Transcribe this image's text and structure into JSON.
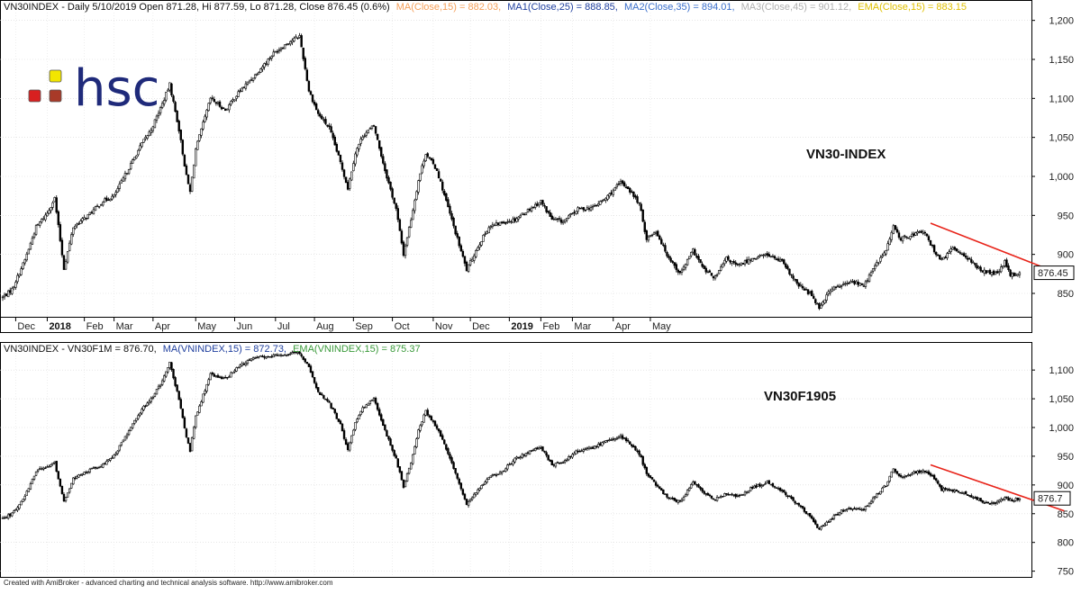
{
  "colors": {
    "ma15": "#f5a05a",
    "ma25": "#1f3f9e",
    "ma35": "#3a6fcc",
    "ma45": "#b0b0b0",
    "ema15": "#e0c000",
    "trend": "#e8241a",
    "candle": "#000000",
    "logo_red": "#d82020",
    "logo_yellow": "#f2e600",
    "logo_brown": "#a83a28",
    "logo_text": "#1f2a7a",
    "f_ma": "#1f3f9e",
    "f_ema": "#3a9a3a"
  },
  "logo": {
    "text": "hsc"
  },
  "panel1": {
    "header": {
      "prefix": "VN30INDEX - Daily 5/10/2019 Open 871.28, Hi 877.59, Lo 871.28, Close 876.45 (0.6%)",
      "ma15": "MA(Close,15) = 882.03,",
      "ma25": "MA1(Close,25) = 888.85,",
      "ma35": "MA2(Close,35) = 894.01,",
      "ma45": "MA3(Close,45) = 901.12,",
      "ema15": "EMA(Close,15) = 883.15"
    },
    "label": "VN30-INDEX",
    "last_value": "876.45"
  },
  "panel2": {
    "header": {
      "prefix": "VN30INDEX - VN30F1M = 876.70,",
      "ma": "MA(VNINDEX,15) = 872.73,",
      "ema": "EMA(VNINDEX,15) = 875.37"
    },
    "label": "VN30F1905",
    "last_value": "876.7"
  },
  "footer": "Created with AmiBroker - advanced charting and technical analysis software. http://www.amibroker.com",
  "chart_data": [
    {
      "type": "candlestick",
      "title": "VN30-INDEX",
      "ylim": [
        820,
        1210
      ],
      "yticks": [
        "850",
        "900",
        "950",
        "1,000",
        "1,050",
        "1,100",
        "1,150",
        "1,200"
      ],
      "months": [
        "Dec",
        "2018",
        "Feb",
        "Mar",
        "Apr",
        "May",
        "Jun",
        "Jul",
        "Aug",
        "Sep",
        "Oct",
        "Nov",
        "Dec",
        "2019",
        "Feb",
        "Mar",
        "Apr",
        "May"
      ],
      "month_index": [
        7,
        24,
        44,
        60,
        81,
        104,
        125,
        147,
        168,
        189,
        210,
        232,
        252,
        273,
        290,
        307,
        329,
        349
      ],
      "close_path": [
        [
          0,
          845
        ],
        [
          5,
          855
        ],
        [
          12,
          893
        ],
        [
          18,
          935
        ],
        [
          24,
          953
        ],
        [
          28,
          972
        ],
        [
          33,
          882
        ],
        [
          38,
          935
        ],
        [
          46,
          950
        ],
        [
          54,
          968
        ],
        [
          60,
          975
        ],
        [
          75,
          1042
        ],
        [
          80,
          1060
        ],
        [
          86,
          1093
        ],
        [
          90,
          1118
        ],
        [
          95,
          1060
        ],
        [
          99,
          1000
        ],
        [
          101,
          980
        ],
        [
          104,
          1035
        ],
        [
          112,
          1100
        ],
        [
          120,
          1085
        ],
        [
          128,
          1110
        ],
        [
          136,
          1130
        ],
        [
          146,
          1158
        ],
        [
          154,
          1172
        ],
        [
          160,
          1180
        ],
        [
          165,
          1110
        ],
        [
          170,
          1080
        ],
        [
          176,
          1062
        ],
        [
          182,
          1018
        ],
        [
          186,
          985
        ],
        [
          190,
          1030
        ],
        [
          194,
          1052
        ],
        [
          200,
          1065
        ],
        [
          206,
          1008
        ],
        [
          212,
          958
        ],
        [
          216,
          900
        ],
        [
          220,
          945
        ],
        [
          224,
          995
        ],
        [
          228,
          1030
        ],
        [
          234,
          1008
        ],
        [
          240,
          960
        ],
        [
          246,
          912
        ],
        [
          250,
          880
        ],
        [
          256,
          910
        ],
        [
          262,
          935
        ],
        [
          268,
          940
        ],
        [
          276,
          945
        ],
        [
          282,
          955
        ],
        [
          290,
          968
        ],
        [
          296,
          945
        ],
        [
          302,
          942
        ],
        [
          310,
          958
        ],
        [
          318,
          960
        ],
        [
          325,
          972
        ],
        [
          333,
          992
        ],
        [
          337,
          985
        ],
        [
          343,
          965
        ],
        [
          347,
          920
        ],
        [
          352,
          930
        ],
        [
          358,
          900
        ],
        [
          365,
          875
        ],
        [
          372,
          905
        ],
        [
          378,
          880
        ],
        [
          384,
          870
        ],
        [
          390,
          895
        ],
        [
          396,
          885
        ],
        [
          404,
          895
        ],
        [
          412,
          900
        ],
        [
          420,
          890
        ],
        [
          428,
          862
        ],
        [
          436,
          848
        ],
        [
          440,
          832
        ],
        [
          446,
          855
        ],
        [
          452,
          860
        ],
        [
          458,
          865
        ],
        [
          464,
          860
        ],
        [
          470,
          885
        ],
        [
          476,
          905
        ],
        [
          480,
          935
        ],
        [
          484,
          920
        ],
        [
          490,
          925
        ],
        [
          496,
          930
        ],
        [
          502,
          905
        ],
        [
          506,
          892
        ],
        [
          512,
          908
        ],
        [
          518,
          900
        ],
        [
          524,
          885
        ],
        [
          530,
          877
        ],
        [
          536,
          875
        ],
        [
          540,
          890
        ],
        [
          543,
          873
        ],
        [
          548,
          876
        ]
      ],
      "trend_line": [
        [
          500,
          940
        ],
        [
          572,
          873
        ]
      ],
      "last": 876.45
    },
    {
      "type": "candlestick",
      "title": "VN30F1905",
      "ylim": [
        740,
        1130
      ],
      "yticks": [
        "750",
        "800",
        "850",
        "900",
        "950",
        "1,000",
        "1,050",
        "1,100"
      ],
      "close_path": [
        [
          0,
          842
        ],
        [
          5,
          850
        ],
        [
          12,
          880
        ],
        [
          18,
          925
        ],
        [
          24,
          930
        ],
        [
          28,
          940
        ],
        [
          33,
          870
        ],
        [
          38,
          910
        ],
        [
          46,
          925
        ],
        [
          54,
          935
        ],
        [
          60,
          950
        ],
        [
          75,
          1032
        ],
        [
          80,
          1050
        ],
        [
          86,
          1080
        ],
        [
          90,
          1112
        ],
        [
          95,
          1050
        ],
        [
          99,
          985
        ],
        [
          101,
          960
        ],
        [
          104,
          1020
        ],
        [
          112,
          1092
        ],
        [
          120,
          1085
        ],
        [
          128,
          1108
        ],
        [
          136,
          1122
        ],
        [
          146,
          1125
        ],
        [
          154,
          1128
        ],
        [
          160,
          1130
        ],
        [
          165,
          1105
        ],
        [
          170,
          1062
        ],
        [
          176,
          1042
        ],
        [
          182,
          1005
        ],
        [
          186,
          960
        ],
        [
          190,
          1010
        ],
        [
          194,
          1035
        ],
        [
          200,
          1050
        ],
        [
          206,
          995
        ],
        [
          212,
          945
        ],
        [
          216,
          897
        ],
        [
          220,
          940
        ],
        [
          224,
          995
        ],
        [
          228,
          1028
        ],
        [
          234,
          1000
        ],
        [
          240,
          955
        ],
        [
          246,
          902
        ],
        [
          250,
          865
        ],
        [
          256,
          890
        ],
        [
          262,
          915
        ],
        [
          268,
          920
        ],
        [
          276,
          945
        ],
        [
          282,
          955
        ],
        [
          290,
          965
        ],
        [
          296,
          935
        ],
        [
          302,
          940
        ],
        [
          310,
          960
        ],
        [
          318,
          965
        ],
        [
          325,
          975
        ],
        [
          333,
          985
        ],
        [
          337,
          975
        ],
        [
          343,
          955
        ],
        [
          347,
          920
        ],
        [
          352,
          900
        ],
        [
          358,
          880
        ],
        [
          365,
          870
        ],
        [
          372,
          905
        ],
        [
          378,
          885
        ],
        [
          384,
          875
        ],
        [
          390,
          885
        ],
        [
          396,
          880
        ],
        [
          404,
          895
        ],
        [
          412,
          905
        ],
        [
          420,
          890
        ],
        [
          428,
          868
        ],
        [
          436,
          842
        ],
        [
          440,
          822
        ],
        [
          446,
          840
        ],
        [
          452,
          855
        ],
        [
          458,
          860
        ],
        [
          464,
          858
        ],
        [
          470,
          880
        ],
        [
          476,
          900
        ],
        [
          480,
          928
        ],
        [
          484,
          915
        ],
        [
          490,
          920
        ],
        [
          496,
          925
        ],
        [
          502,
          912
        ],
        [
          506,
          892
        ],
        [
          512,
          890
        ],
        [
          518,
          885
        ],
        [
          524,
          878
        ],
        [
          530,
          868
        ],
        [
          536,
          870
        ],
        [
          540,
          880
        ],
        [
          543,
          873
        ],
        [
          548,
          876
        ]
      ],
      "trend_line": [
        [
          500,
          935
        ],
        [
          572,
          855
        ]
      ],
      "last": 876.7
    }
  ]
}
